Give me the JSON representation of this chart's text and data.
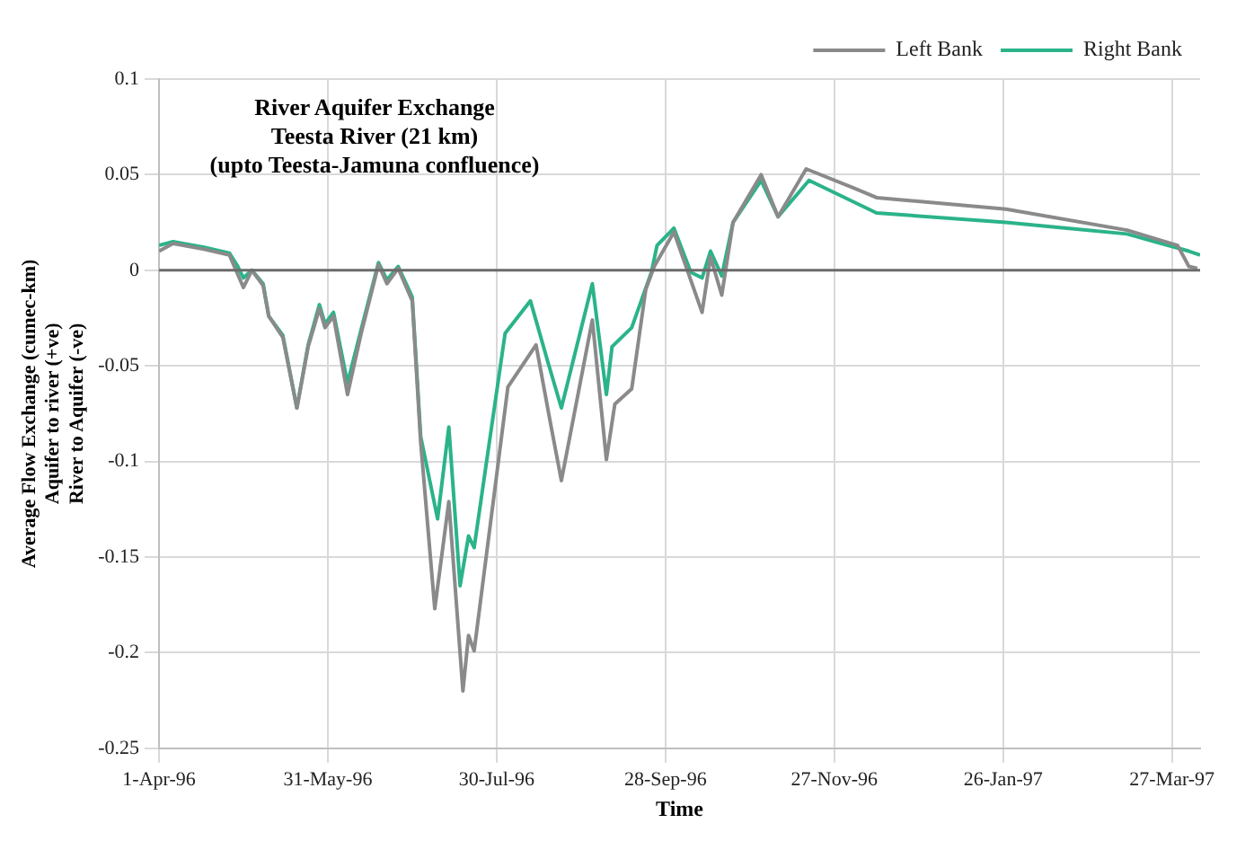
{
  "chart_data": {
    "type": "line",
    "title": "River Aquifer Exchange\nTeesta River (21 km)\n(upto Teesta-Jamuna confluence)",
    "xlabel": "Time",
    "ylabel": "Average Flow Exchange (cumec-km)\nAquifer to river (+ve)\nRiver to Aquifer (-ve)",
    "series": [
      {
        "name": "Left Bank",
        "color": "#8a8a8a",
        "x": [
          "1996-04-01",
          "1996-04-06",
          "1996-04-17",
          "1996-04-26",
          "1996-05-01",
          "1996-05-04",
          "1996-05-08",
          "1996-05-10",
          "1996-05-15",
          "1996-05-20",
          "1996-05-24",
          "1996-05-28",
          "1996-05-30",
          "1996-06-02",
          "1996-06-07",
          "1996-06-12",
          "1996-06-18",
          "1996-06-21",
          "1996-06-25",
          "1996-06-30",
          "1996-07-03",
          "1996-07-08",
          "1996-07-13",
          "1996-07-18",
          "1996-07-20",
          "1996-07-22",
          "1996-08-03",
          "1996-08-13",
          "1996-08-18",
          "1996-08-22",
          "1996-09-02",
          "1996-09-07",
          "1996-09-10",
          "1996-09-16",
          "1996-09-21",
          "1996-09-24",
          "1996-10-01",
          "1996-10-11",
          "1996-10-14",
          "1996-10-18",
          "1996-10-22",
          "1996-11-01",
          "1996-11-07",
          "1996-11-17",
          "1996-12-04",
          "1996-12-12",
          "1997-01-27",
          "1997-03-11",
          "1997-03-29",
          "1997-04-02",
          "1997-04-05"
        ],
        "values": [
          0.01,
          0.014,
          0.011,
          0.008,
          -0.009,
          0,
          -0.008,
          -0.024,
          -0.035,
          -0.072,
          -0.04,
          -0.02,
          -0.03,
          -0.024,
          -0.065,
          -0.032,
          0.003,
          -0.007,
          0.001,
          -0.016,
          -0.09,
          -0.177,
          -0.121,
          -0.22,
          -0.191,
          -0.199,
          -0.061,
          -0.039,
          -0.079,
          -0.11,
          -0.026,
          -0.099,
          -0.07,
          -0.062,
          -0.01,
          0.002,
          0.02,
          -0.022,
          0.007,
          -0.013,
          0.025,
          0.05,
          0.028,
          0.053,
          0.043,
          0.038,
          0.032,
          0.021,
          0.013,
          0.002,
          0.001
        ]
      },
      {
        "name": "Right Bank",
        "color": "#2bb38a",
        "x": [
          "1996-04-01",
          "1996-04-06",
          "1996-04-17",
          "1996-04-26",
          "1996-04-29",
          "1996-05-01",
          "1996-05-04",
          "1996-05-08",
          "1996-05-10",
          "1996-05-15",
          "1996-05-20",
          "1996-05-24",
          "1996-05-28",
          "1996-05-30",
          "1996-06-02",
          "1996-06-07",
          "1996-06-12",
          "1996-06-18",
          "1996-06-21",
          "1996-06-25",
          "1996-06-30",
          "1996-07-03",
          "1996-07-09",
          "1996-07-13",
          "1996-07-17",
          "1996-07-20",
          "1996-07-22",
          "1996-08-02",
          "1996-08-11",
          "1996-08-17",
          "1996-08-22",
          "1996-09-02",
          "1996-09-07",
          "1996-09-09",
          "1996-09-16",
          "1996-09-23",
          "1996-09-25",
          "1996-10-01",
          "1996-10-07",
          "1996-10-11",
          "1996-10-14",
          "1996-10-18",
          "1996-10-22",
          "1996-11-01",
          "1996-11-07",
          "1996-11-18",
          "1996-12-12",
          "1997-01-27",
          "1997-03-11",
          "1997-04-02",
          "1997-04-06"
        ],
        "values": [
          0.013,
          0.015,
          0.012,
          0.009,
          0.002,
          -0.004,
          0,
          -0.007,
          -0.024,
          -0.034,
          -0.072,
          -0.039,
          -0.018,
          -0.028,
          -0.022,
          -0.059,
          -0.03,
          0.004,
          -0.005,
          0.002,
          -0.014,
          -0.087,
          -0.13,
          -0.082,
          -0.165,
          -0.139,
          -0.145,
          -0.033,
          -0.016,
          -0.047,
          -0.072,
          -0.007,
          -0.065,
          -0.04,
          -0.03,
          -0.001,
          0.013,
          0.022,
          -0.001,
          -0.004,
          0.01,
          -0.003,
          0.025,
          0.047,
          0.028,
          0.047,
          0.03,
          0.025,
          0.019,
          0.01,
          0.008
        ]
      }
    ],
    "xlim": [
      "1996-04-01",
      "1997-04-06"
    ],
    "xticks": [
      {
        "value": "1996-04-01",
        "label": "1-Apr-96"
      },
      {
        "value": "1996-05-31",
        "label": "31-May-96"
      },
      {
        "value": "1996-07-30",
        "label": "30-Jul-96"
      },
      {
        "value": "1996-09-28",
        "label": "28-Sep-96"
      },
      {
        "value": "1996-11-27",
        "label": "27-Nov-96"
      },
      {
        "value": "1997-01-26",
        "label": "26-Jan-97"
      },
      {
        "value": "1997-03-27",
        "label": "27-Mar-97"
      }
    ],
    "ylim": [
      -0.25,
      0.1
    ],
    "yticks": [
      -0.25,
      -0.2,
      -0.15,
      -0.1,
      -0.05,
      0,
      0.05,
      0.1
    ],
    "ref_lines": [
      {
        "axis": "y",
        "value": 0,
        "color": "#6b6b6b"
      }
    ],
    "grid": true,
    "legend": "top right",
    "marker": "none",
    "line_style": "solid"
  }
}
